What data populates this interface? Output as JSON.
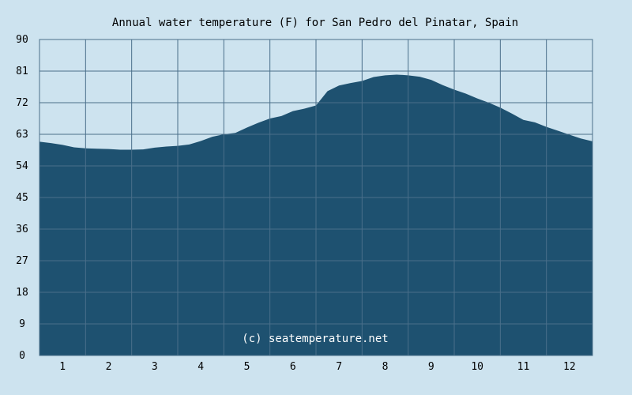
{
  "chart_data": {
    "type": "area",
    "title": "Annual water temperature (F) for San Pedro del Pinatar, Spain",
    "xlabel": "",
    "ylabel": "",
    "x_tick_labels": [
      "1",
      "2",
      "3",
      "4",
      "5",
      "6",
      "7",
      "8",
      "9",
      "10",
      "11",
      "12"
    ],
    "y_tick_labels": [
      "0",
      "9",
      "18",
      "27",
      "36",
      "45",
      "54",
      "63",
      "72",
      "81",
      "90"
    ],
    "ylim": [
      0,
      90
    ],
    "xlim": [
      0.5,
      12.5
    ],
    "grid": true,
    "legend": "none",
    "watermark": "(c) seatemperature.net",
    "series": [
      {
        "x": [
          0.5,
          0.75,
          1.0,
          1.25,
          1.5,
          1.75,
          2.0,
          2.25,
          2.5,
          2.75,
          3.0,
          3.25,
          3.5,
          3.75,
          4.0,
          4.25,
          4.5,
          4.75,
          5.0,
          5.25,
          5.5,
          5.75,
          6.0,
          6.25,
          6.5,
          6.75,
          7.0,
          7.25,
          7.5,
          7.75,
          8.0,
          8.25,
          8.5,
          8.75,
          9.0,
          9.25,
          9.5,
          9.75,
          10.0,
          10.25,
          10.5,
          10.75,
          11.0,
          11.25,
          11.5,
          11.75,
          12.0,
          12.25,
          12.5
        ],
        "values": [
          60.9,
          60.5,
          60.0,
          59.3,
          59.0,
          58.9,
          58.8,
          58.6,
          58.6,
          58.7,
          59.2,
          59.5,
          59.7,
          60.1,
          61.1,
          62.3,
          63.0,
          63.4,
          64.9,
          66.3,
          67.5,
          68.2,
          69.6,
          70.3,
          71.2,
          75.3,
          76.9,
          77.6,
          78.2,
          79.3,
          79.8,
          80.0,
          79.8,
          79.4,
          78.5,
          77.0,
          75.7,
          74.6,
          73.2,
          72.0,
          70.6,
          68.9,
          67.1,
          66.4,
          65.1,
          64.0,
          62.9,
          61.8,
          61.0
        ]
      }
    ]
  },
  "colors": {
    "page_background": "#cde3ef",
    "plot_background": "#cde3ef",
    "area_fill": "#1e5170",
    "grid_line": "#4a6f8a",
    "text": "#000000",
    "watermark_text": "#ffffff"
  }
}
